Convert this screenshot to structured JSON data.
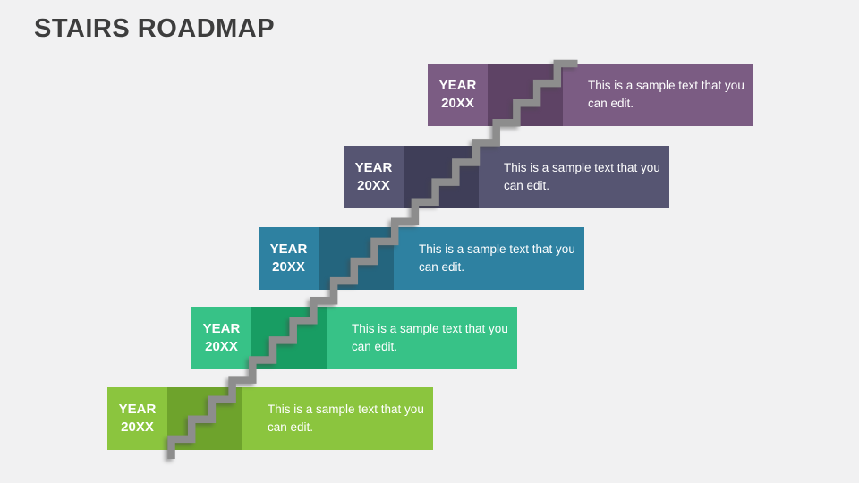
{
  "slide": {
    "title": "STAIRS ROADMAP",
    "title_color": "#3d3d3d",
    "background_color": "#f1f1f2"
  },
  "connector": {
    "name": "staircase-zigzag",
    "color": "#8d8d8d"
  },
  "steps": [
    {
      "year_label": [
        "YEAR",
        "20XX"
      ],
      "description": "This is a sample text that you can edit.",
      "colors": {
        "light": "#8bc53e",
        "dark": "#6ea32c"
      }
    },
    {
      "year_label": [
        "YEAR",
        "20XX"
      ],
      "description": "This is a sample text that you can edit.",
      "colors": {
        "light": "#37c287",
        "dark": "#189d63"
      }
    },
    {
      "year_label": [
        "YEAR",
        "20XX"
      ],
      "description": "This is a sample text that you can edit.",
      "colors": {
        "light": "#2e81a1",
        "dark": "#24657e"
      }
    },
    {
      "year_label": [
        "YEAR",
        "20XX"
      ],
      "description": "This is a sample text that you can edit.",
      "colors": {
        "light": "#565572",
        "dark": "#3f3e58"
      }
    },
    {
      "year_label": [
        "YEAR",
        "20XX"
      ],
      "description": "This is a sample text that you can edit.",
      "colors": {
        "light": "#7b5c83",
        "dark": "#5e4365"
      }
    }
  ]
}
